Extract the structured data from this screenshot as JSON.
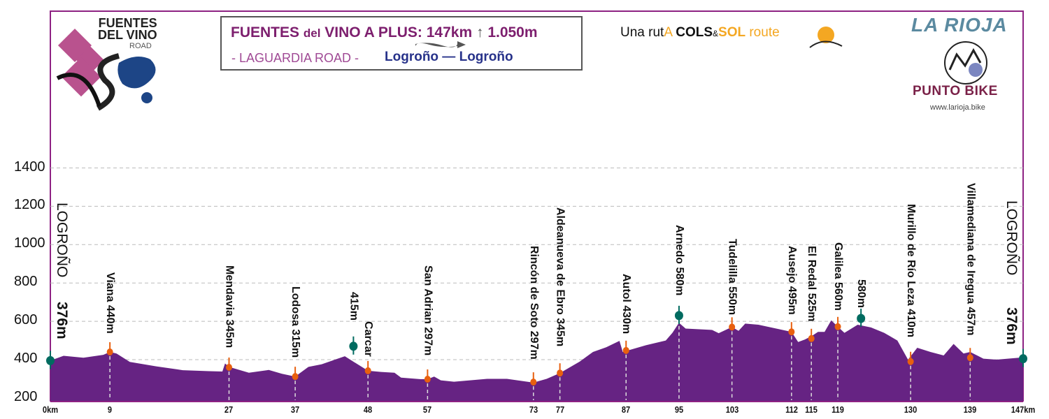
{
  "header": {
    "title_main": "FUENTES",
    "title_del": "del",
    "title_rest": "VINO A PLUS:",
    "distance": "147km",
    "climb": "1.050m",
    "subtitle": "- LAGUARDIA ROAD -",
    "route": "Logroño — Logroño",
    "cols_prefix": "Una rut",
    "cols_a": "A",
    "cols_cols": "COLS",
    "cols_amp": "&",
    "cols_sol": "SOL",
    "cols_route": "route",
    "brand_region": "LA RIOJA",
    "brand_name": "PUNTO BIKE",
    "brand_web": "www.larioja.bike",
    "logo_line1": "FUENTES",
    "logo_line2": "DEL VINO",
    "logo_line3": "ROAD"
  },
  "colors": {
    "profile": "#662383",
    "frame": "#8e2283",
    "summit": "#006b60",
    "waypoint": "#e8600f",
    "grid": "#bbbbbb"
  },
  "chart_data": {
    "type": "area",
    "xlabel": "",
    "ylabel": "",
    "xlim": [
      0,
      147
    ],
    "ylim": [
      180,
      1500
    ],
    "grid": true,
    "y_ticks": [
      200,
      400,
      600,
      800,
      1000,
      1200,
      1400
    ],
    "x_ticks": [
      {
        "km": 0,
        "label": "0km"
      },
      {
        "km": 9,
        "label": "9"
      },
      {
        "km": 27,
        "label": "27"
      },
      {
        "km": 37,
        "label": "37"
      },
      {
        "km": 48,
        "label": "48"
      },
      {
        "km": 57,
        "label": "57"
      },
      {
        "km": 73,
        "label": "73"
      },
      {
        "km": 77,
        "label": "77"
      },
      {
        "km": 87,
        "label": "87"
      },
      {
        "km": 95,
        "label": "95"
      },
      {
        "km": 103,
        "label": "103"
      },
      {
        "km": 112,
        "label": "112"
      },
      {
        "km": 115,
        "label": "115"
      },
      {
        "km": 119,
        "label": "119"
      },
      {
        "km": 130,
        "label": "130"
      },
      {
        "km": 139,
        "label": "139"
      },
      {
        "km": 147,
        "label": "147km"
      }
    ],
    "profile": [
      [
        0,
        395
      ],
      [
        2,
        420
      ],
      [
        5,
        410
      ],
      [
        8,
        425
      ],
      [
        9,
        440
      ],
      [
        10,
        432
      ],
      [
        12,
        388
      ],
      [
        16,
        365
      ],
      [
        20,
        345
      ],
      [
        24,
        340
      ],
      [
        26,
        338
      ],
      [
        26.4,
        380
      ],
      [
        27,
        362
      ],
      [
        30,
        332
      ],
      [
        33,
        346
      ],
      [
        35,
        326
      ],
      [
        37,
        312
      ],
      [
        39,
        362
      ],
      [
        41,
        376
      ],
      [
        43,
        400
      ],
      [
        44.5,
        418
      ],
      [
        46,
        385
      ],
      [
        48,
        342
      ],
      [
        50,
        336
      ],
      [
        52,
        332
      ],
      [
        53,
        306
      ],
      [
        56,
        298
      ],
      [
        57,
        298
      ],
      [
        58,
        312
      ],
      [
        59,
        292
      ],
      [
        61,
        285
      ],
      [
        66,
        300
      ],
      [
        69,
        300
      ],
      [
        73,
        280
      ],
      [
        75,
        300
      ],
      [
        77,
        330
      ],
      [
        80,
        390
      ],
      [
        82,
        440
      ],
      [
        84,
        465
      ],
      [
        86,
        498
      ],
      [
        86.5,
        440
      ],
      [
        88,
        455
      ],
      [
        90,
        475
      ],
      [
        93,
        500
      ],
      [
        94,
        540
      ],
      [
        95,
        592
      ],
      [
        96,
        562
      ],
      [
        100,
        555
      ],
      [
        101,
        538
      ],
      [
        103,
        570
      ],
      [
        104,
        550
      ],
      [
        105,
        588
      ],
      [
        107,
        582
      ],
      [
        110,
        560
      ],
      [
        112,
        545
      ],
      [
        113,
        492
      ],
      [
        114,
        505
      ],
      [
        115,
        522
      ],
      [
        116,
        545
      ],
      [
        117,
        545
      ],
      [
        118,
        605
      ],
      [
        119,
        572
      ],
      [
        120,
        540
      ],
      [
        122,
        582
      ],
      [
        124,
        568
      ],
      [
        126,
        540
      ],
      [
        128,
        500
      ],
      [
        129.6,
        400
      ],
      [
        131,
        462
      ],
      [
        133,
        440
      ],
      [
        135,
        422
      ],
      [
        136.5,
        482
      ],
      [
        138,
        432
      ],
      [
        139,
        440
      ],
      [
        141,
        405
      ],
      [
        143,
        400
      ],
      [
        147,
        412
      ]
    ],
    "waypoints": [
      {
        "km": 0,
        "elev": 395,
        "kind": "summit",
        "name": "LOGROÑO",
        "alt": "376m"
      },
      {
        "km": 9,
        "elev": 440,
        "kind": "point",
        "name": "Viana 440m",
        "drop": true
      },
      {
        "km": 27,
        "elev": 360,
        "kind": "point",
        "name": "Mendavia 345m",
        "drop": true
      },
      {
        "km": 37,
        "elev": 312,
        "kind": "point",
        "name": "Lodosa 315m",
        "drop": true
      },
      {
        "km": 45.8,
        "elev": 470,
        "kind": "summit",
        "name": "415m",
        "drop": false
      },
      {
        "km": 48,
        "elev": 342,
        "kind": "point",
        "name": "Carcar",
        "drop": true
      },
      {
        "km": 57,
        "elev": 298,
        "kind": "point",
        "name": "San Adrian 297m",
        "drop": true
      },
      {
        "km": 73,
        "elev": 283,
        "kind": "point",
        "name": "Rincón de Soto 297m",
        "drop": true
      },
      {
        "km": 77,
        "elev": 330,
        "kind": "point",
        "name": "Aldeanueva de Ebro 345m",
        "drop": true
      },
      {
        "km": 87,
        "elev": 448,
        "kind": "point",
        "name": "Autol 430m",
        "drop": true
      },
      {
        "km": 95,
        "elev": 630,
        "kind": "summit",
        "name": "Arnedo 580m",
        "drop": true
      },
      {
        "km": 103,
        "elev": 570,
        "kind": "point",
        "name": "Tudelilla 550m",
        "drop": true
      },
      {
        "km": 112,
        "elev": 545,
        "kind": "point",
        "name": "Ausejo 495m",
        "drop": true
      },
      {
        "km": 115,
        "elev": 510,
        "kind": "point",
        "name": "El Redal 525m",
        "drop": true
      },
      {
        "km": 119,
        "elev": 572,
        "kind": "point",
        "name": "Galilea 560m",
        "drop": true
      },
      {
        "km": 122.5,
        "elev": 615,
        "kind": "summit",
        "name": "580m",
        "drop": false
      },
      {
        "km": 130,
        "elev": 390,
        "kind": "point",
        "name": "Murillo de Río Leza 410m",
        "drop": true
      },
      {
        "km": 139,
        "elev": 410,
        "kind": "point",
        "name": "Villamediana de Iregua 457m",
        "drop": true
      },
      {
        "km": 147,
        "elev": 405,
        "kind": "summit",
        "name": "LOGROÑO",
        "alt": "376m"
      }
    ]
  }
}
